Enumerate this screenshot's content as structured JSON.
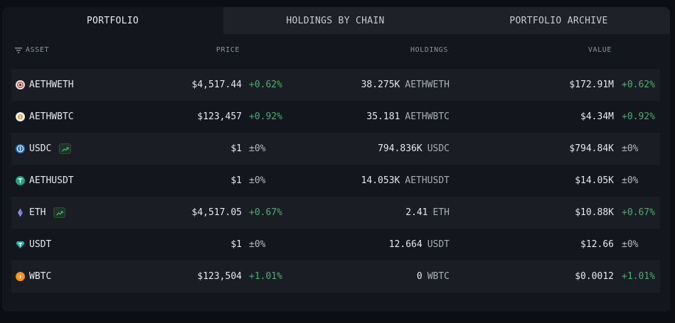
{
  "tabs": [
    "PORTFOLIO",
    "HOLDINGS BY CHAIN",
    "PORTFOLIO ARCHIVE"
  ],
  "columns": {
    "asset": "ASSET",
    "price": "PRICE",
    "holdings": "HOLDINGS",
    "value": "VALUE"
  },
  "colors": {
    "positive": "#3fb56b",
    "neutral": "#b7bac1",
    "panel": "#13161d",
    "row_alt": "#1a1d24"
  },
  "rows": [
    {
      "symbol": "AETHWETH",
      "icon": "weth-coin-icon",
      "icon_color": "#e9e9ea",
      "trend": false,
      "price": "$4,517.44",
      "price_change": "+0.62%",
      "holdings_amount": "38.275K",
      "holdings_symbol": "AETHWETH",
      "value": "$172.91M",
      "value_change": "+0.62%"
    },
    {
      "symbol": "AETHWBTC",
      "icon": "wbtc-coin-icon",
      "icon_color": "#f2f2f2",
      "trend": false,
      "price": "$123,457",
      "price_change": "+0.92%",
      "holdings_amount": "35.181",
      "holdings_symbol": "AETHWBTC",
      "value": "$4.34M",
      "value_change": "+0.92%"
    },
    {
      "symbol": "USDC",
      "icon": "usdc-coin-icon",
      "icon_color": "#2775ca",
      "trend": true,
      "price": "$1",
      "price_change": "±0%",
      "holdings_amount": "794.836K",
      "holdings_symbol": "USDC",
      "value": "$794.84K",
      "value_change": "±0%"
    },
    {
      "symbol": "AETHUSDT",
      "icon": "usdt-coin-icon",
      "icon_color": "#26a17b",
      "trend": false,
      "price": "$1",
      "price_change": "±0%",
      "holdings_amount": "14.053K",
      "holdings_symbol": "AETHUSDT",
      "value": "$14.05K",
      "value_change": "±0%"
    },
    {
      "symbol": "ETH",
      "icon": "eth-diamond-icon",
      "icon_color": "#8c8fe0",
      "trend": true,
      "price": "$4,517.05",
      "price_change": "+0.67%",
      "holdings_amount": "2.41",
      "holdings_symbol": "ETH",
      "value": "$10.88K",
      "value_change": "+0.67%"
    },
    {
      "symbol": "USDT",
      "icon": "usdt-gem-icon",
      "icon_color": "#1fb5b0",
      "trend": false,
      "price": "$1",
      "price_change": "±0%",
      "holdings_amount": "12.664",
      "holdings_symbol": "USDT",
      "value": "$12.66",
      "value_change": "±0%"
    },
    {
      "symbol": "WBTC",
      "icon": "wbtc-coin-icon",
      "icon_color": "#f7931a",
      "trend": false,
      "price": "$123,504",
      "price_change": "+1.01%",
      "holdings_amount": "0",
      "holdings_symbol": "WBTC",
      "value": "$0.0012",
      "value_change": "+1.01%"
    }
  ]
}
